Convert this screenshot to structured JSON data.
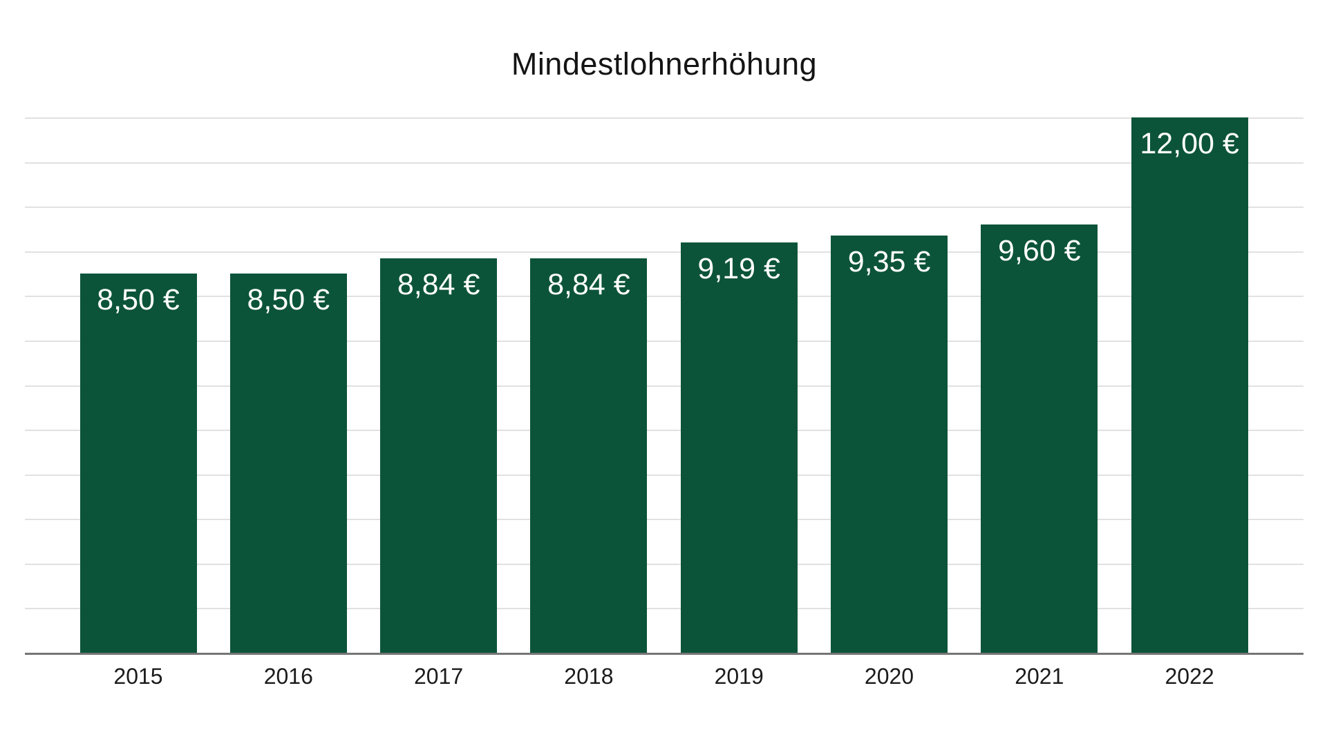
{
  "chart_data": {
    "type": "bar",
    "title": "Mindestlohnerhöhung",
    "categories": [
      "2015",
      "2016",
      "2017",
      "2018",
      "2019",
      "2020",
      "2021",
      "2022"
    ],
    "values": [
      8.5,
      8.5,
      8.84,
      8.84,
      9.19,
      9.35,
      9.6,
      12.0
    ],
    "value_labels": [
      "8,50 €",
      "8,50 €",
      "8,84 €",
      "8,84 €",
      "9,19 €",
      "9,35 €",
      "9,60 €",
      "12,00 €"
    ],
    "xlabel": "",
    "ylabel": "",
    "ylim": [
      0,
      12
    ],
    "gridline_step": 1,
    "grid": "horizontal-only",
    "y_axis_labels_visible": false,
    "legend": "none",
    "value_label_position": "inside-top",
    "currency_unit": "€"
  },
  "colors": {
    "bar": "#0c5439",
    "bar_label_text": "#ffffff",
    "gridline": "#e1e1e1",
    "axis_line": "#757575",
    "title_text": "#141414",
    "x_label_text": "#1b1b1b",
    "background": "#ffffff"
  }
}
